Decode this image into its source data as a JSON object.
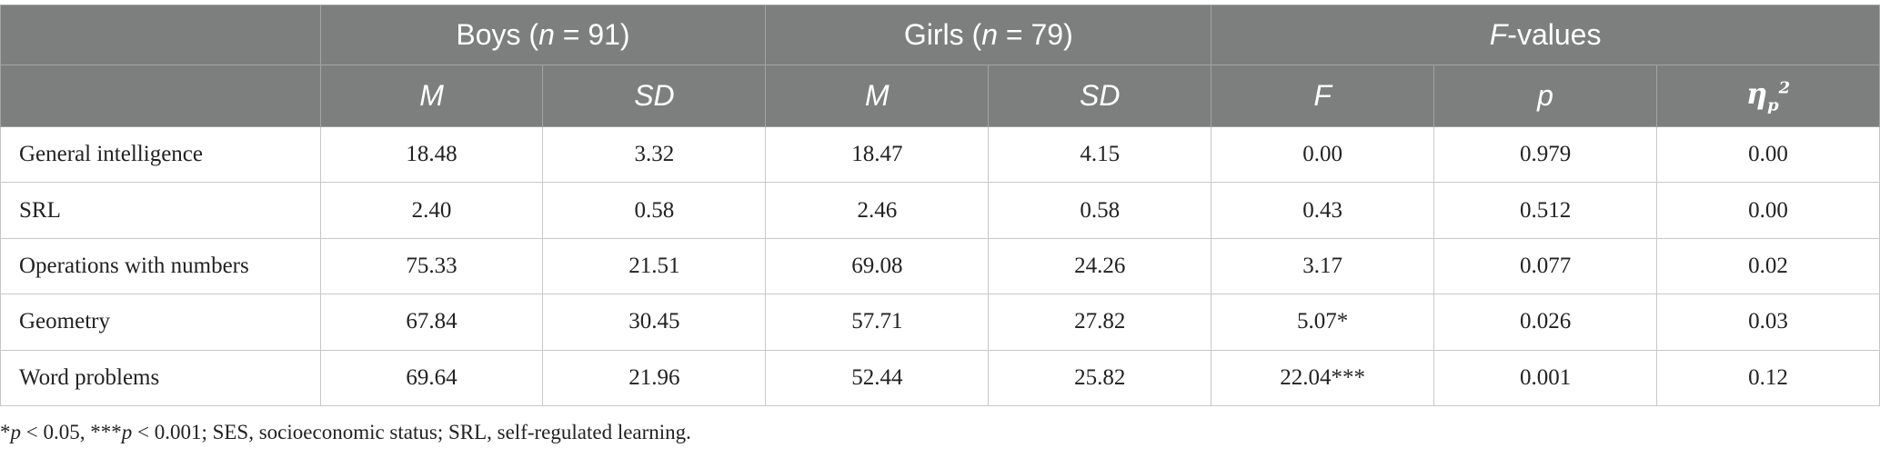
{
  "table": {
    "header_top": {
      "blank": "",
      "boys_label": "Boys (",
      "boys_n_var": "n",
      "boys_n_rest": " = 91)",
      "girls_label": "Girls (",
      "girls_n_var": "n",
      "girls_n_rest": " = 79)",
      "fvalues_var": "F",
      "fvalues_rest": "-values"
    },
    "header_sub": {
      "blank": "",
      "boys_m": "M",
      "boys_sd": "SD",
      "girls_m": "M",
      "girls_sd": "SD",
      "f": "F",
      "p": "p",
      "eta_symbol": "η",
      "eta_sub": "p",
      "eta_sup": "2"
    },
    "rows": [
      {
        "label": "General intelligence",
        "boys_m": "18.48",
        "boys_sd": "3.32",
        "girls_m": "18.47",
        "girls_sd": "4.15",
        "f": "0.00",
        "p": "0.979",
        "eta": "0.00"
      },
      {
        "label": "SRL",
        "boys_m": "2.40",
        "boys_sd": "0.58",
        "girls_m": "2.46",
        "girls_sd": "0.58",
        "f": "0.43",
        "p": "0.512",
        "eta": "0.00"
      },
      {
        "label": "Operations with numbers",
        "boys_m": "75.33",
        "boys_sd": "21.51",
        "girls_m": "69.08",
        "girls_sd": "24.26",
        "f": "3.17",
        "p": "0.077",
        "eta": "0.02"
      },
      {
        "label": "Geometry",
        "boys_m": "67.84",
        "boys_sd": "30.45",
        "girls_m": "57.71",
        "girls_sd": "27.82",
        "f": "5.07*",
        "p": "0.026",
        "eta": "0.03"
      },
      {
        "label": "Word problems",
        "boys_m": "69.64",
        "boys_sd": "21.96",
        "girls_m": "52.44",
        "girls_sd": "25.82",
        "f": "22.04***",
        "p": "0.001",
        "eta": "0.12"
      }
    ]
  },
  "footnote": {
    "part1": "*",
    "p1": "p",
    "part2": " < 0.05, ***",
    "p2": "p",
    "part3": " < 0.001; SES, socioeconomic status; SRL, self-regulated learning."
  }
}
